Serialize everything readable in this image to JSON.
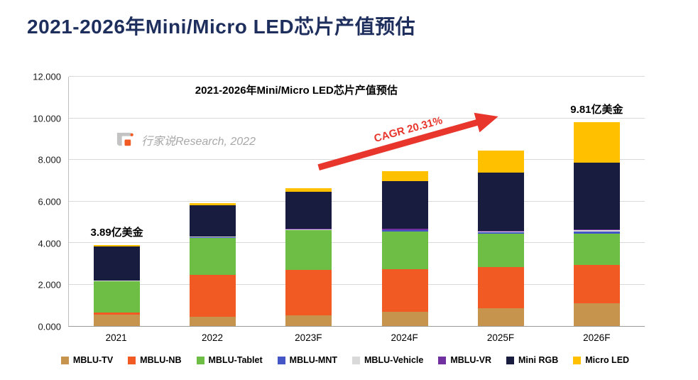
{
  "page": {
    "title": "2021-2026年Mini/Micro LED芯片产值预估"
  },
  "colors": {
    "title_navy": "#1e2f5e",
    "arrow_red": "#e8362d",
    "watermark_gray": "#a8a8a8"
  },
  "chart": {
    "inner_title": "2021-2026年Mini/Micro LED芯片产值预估",
    "watermark": "行家说Research, 2022",
    "cagr_label": "CAGR 20.31%"
  },
  "chart_data": {
    "type": "bar",
    "stacked": true,
    "title": "2021-2026年Mini/Micro LED芯片产值预估",
    "unit": "亿美金",
    "categories": [
      "2021",
      "2022",
      "2023F",
      "2024F",
      "2025F",
      "2026F"
    ],
    "series": [
      {
        "name": "MBLU-TV",
        "color": "#c6944c",
        "values": [
          0.55,
          0.45,
          0.5,
          0.7,
          0.85,
          1.1
        ]
      },
      {
        "name": "MBLU-NB",
        "color": "#f15a22",
        "values": [
          0.1,
          2.0,
          2.2,
          2.05,
          2.0,
          1.85
        ]
      },
      {
        "name": "MBLU-Tablet",
        "color": "#6ebe45",
        "values": [
          1.5,
          1.8,
          1.9,
          1.8,
          1.6,
          1.5
        ]
      },
      {
        "name": "MBLU-MNT",
        "color": "#4456c6",
        "values": [
          0.02,
          0.03,
          0.03,
          0.05,
          0.05,
          0.1
        ]
      },
      {
        "name": "MBLU-Vehicle",
        "color": "#d9d9d9",
        "values": [
          0.01,
          0.02,
          0.02,
          0.03,
          0.04,
          0.05
        ]
      },
      {
        "name": "MBLU-VR",
        "color": "#7030a0",
        "values": [
          0.01,
          0.02,
          0.02,
          0.04,
          0.05,
          0.06
        ]
      },
      {
        "name": "Mini RGB",
        "color": "#181c3e",
        "values": [
          1.65,
          1.5,
          1.8,
          2.3,
          2.8,
          3.2
        ]
      },
      {
        "name": "Micro LED",
        "color": "#ffc000",
        "values": [
          0.05,
          0.08,
          0.15,
          0.48,
          1.05,
          1.95
        ]
      }
    ],
    "ylim": [
      0,
      12
    ],
    "y_ticks": [
      "0.000",
      "2.000",
      "4.000",
      "6.000",
      "8.000",
      "10.000",
      "12.000"
    ],
    "grid": true,
    "legend_position": "bottom",
    "annotations": [
      {
        "text": "3.89亿美金",
        "category_index": 0
      },
      {
        "text": "9.81亿美金",
        "category_index": 5
      }
    ]
  }
}
